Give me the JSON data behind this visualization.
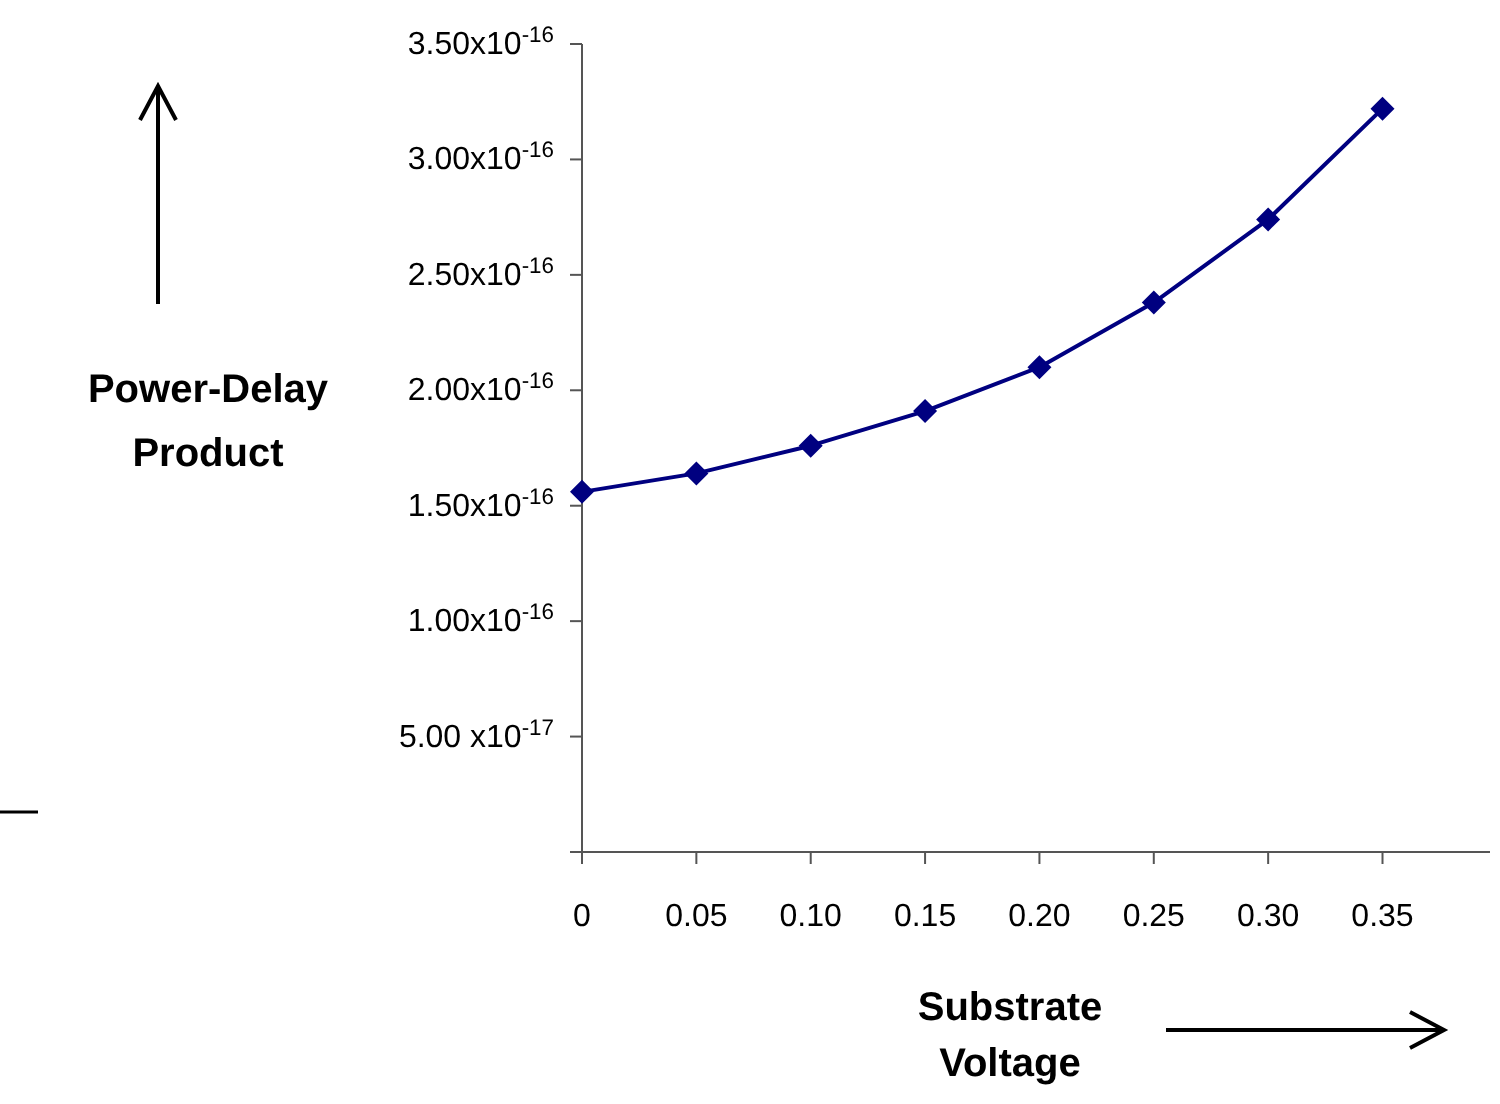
{
  "chart_data": {
    "type": "line",
    "xlabel": "Substrate Voltage",
    "ylabel": "Power-Delay Product",
    "x": [
      0,
      0.05,
      0.1,
      0.15,
      0.2,
      0.25,
      0.3,
      0.35
    ],
    "series": [
      {
        "color": "#000080",
        "values": [
          1.56e-16,
          1.64e-16,
          1.76e-16,
          1.91e-16,
          2.1e-16,
          2.38e-16,
          2.74e-16,
          3.22e-16
        ]
      }
    ],
    "xlim": [
      0,
      0.397
    ],
    "xticks": [
      0,
      {
        "value": 0.05,
        "label": "0.05"
      },
      {
        "value": 0.1,
        "label": "0.10"
      },
      {
        "value": 0.15,
        "label": "0.15"
      },
      {
        "value": 0.2,
        "label": "0.20"
      },
      {
        "value": 0.25,
        "label": "0.25"
      },
      {
        "value": 0.3,
        "label": "0.30"
      },
      {
        "value": 0.35,
        "label": "0.35"
      }
    ],
    "ylim": [
      0,
      3.5e-16
    ],
    "yticks": [
      {
        "value": 0,
        "label": null
      },
      {
        "value": 5e-17,
        "label": "5.00 x10$^{-17}$"
      },
      {
        "value": 1e-16,
        "label": "1.00x10$^{-16}$"
      },
      {
        "value": 1.5e-16,
        "label": "1.50x10$^{-16}$"
      },
      {
        "value": 2e-16,
        "label": "2.00x10$^{-16}$"
      },
      {
        "value": 2.5e-16,
        "label": "2.50x10$^{-16}$"
      },
      {
        "value": 3e-16,
        "label": "3.00x10$^{-16}$"
      },
      {
        "value": 3.5e-16,
        "label": "3.50x10$^{-16}$"
      }
    ],
    "grid": false,
    "marker": "diamond",
    "line_style": "solid"
  }
}
